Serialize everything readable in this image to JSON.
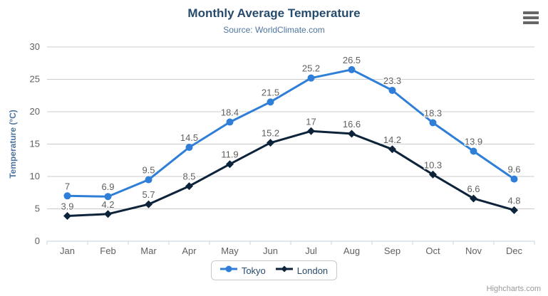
{
  "header": {
    "title": "Monthly Average Temperature",
    "subtitle": "Source: WorldClimate.com"
  },
  "context_menu": {
    "icon": "hamburger-icon"
  },
  "credits": {
    "label": "Highcharts.com"
  },
  "legend": {
    "items": [
      "Tokyo",
      "London"
    ]
  },
  "colors": {
    "tokyo_series": "#2f7ed8",
    "london_series": "#0d233a",
    "title_text": "#274b6d",
    "subtitle_text": "#4d759e",
    "axis_title_text": "#4d759e",
    "axis_label_text": "#606060",
    "data_label_text": "#606060",
    "gridline": "#cccccc",
    "axis_line": "#c0d0e0",
    "legend_text": "#274b6d",
    "legend_border": "#c9c9c9",
    "credits_text": "#999999",
    "menu_icon": "#666666",
    "background": "#ffffff"
  },
  "chart_data": {
    "type": "line",
    "title": "Monthly Average Temperature",
    "subtitle": "Source: WorldClimate.com",
    "categories": [
      "Jan",
      "Feb",
      "Mar",
      "Apr",
      "May",
      "Jun",
      "Jul",
      "Aug",
      "Sep",
      "Oct",
      "Nov",
      "Dec"
    ],
    "series": [
      {
        "name": "Tokyo",
        "color": "#2f7ed8",
        "marker": "circle",
        "values": [
          7,
          6.9,
          9.5,
          14.5,
          18.4,
          21.5,
          25.2,
          26.5,
          23.3,
          18.3,
          13.9,
          9.6
        ]
      },
      {
        "name": "London",
        "color": "#0d233a",
        "marker": "diamond",
        "values": [
          3.9,
          4.2,
          5.7,
          8.5,
          11.9,
          15.2,
          17,
          16.6,
          14.2,
          10.3,
          6.6,
          4.8
        ]
      }
    ],
    "xlabel": "",
    "ylabel": "Temperature (°C)",
    "ylim": [
      0,
      30
    ],
    "ytick_interval": 5,
    "yticks": [
      0,
      5,
      10,
      15,
      20,
      25,
      30
    ],
    "grid": true,
    "data_labels": true,
    "legend_position": "bottom"
  }
}
